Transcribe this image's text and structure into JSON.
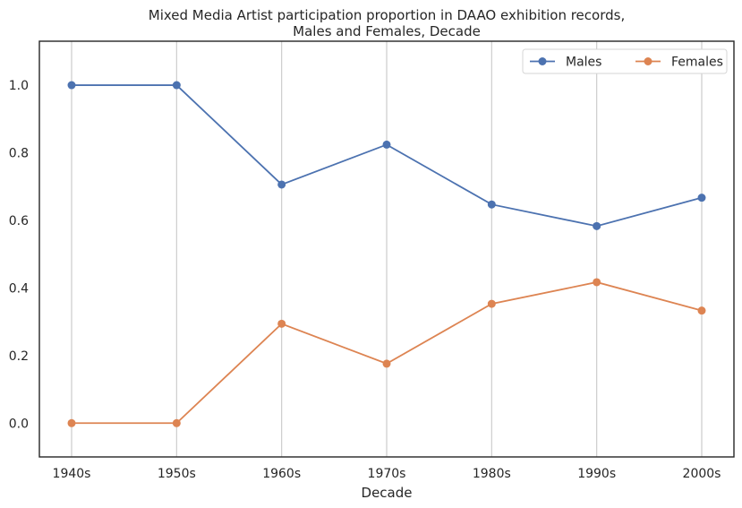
{
  "chart_data": {
    "type": "line",
    "title_lines": [
      "Mixed Media Artist participation proportion in DAAO exhibition records,",
      "Males and Females, Decade"
    ],
    "xlabel": "Decade",
    "ylabel": "",
    "categories": [
      "1940s",
      "1950s",
      "1960s",
      "1970s",
      "1980s",
      "1990s",
      "2000s"
    ],
    "ylim": [
      -0.1,
      1.13
    ],
    "yticks": [
      "0.0",
      "0.2",
      "0.4",
      "0.6",
      "0.8",
      "1.0"
    ],
    "grid": "vertical",
    "legend": "top-right",
    "series": [
      {
        "name": "Males",
        "color": "#4c72b0",
        "values": [
          1.0,
          1.0,
          0.706,
          0.824,
          0.647,
          0.583,
          0.667
        ]
      },
      {
        "name": "Females",
        "color": "#dd8452",
        "values": [
          0.0,
          0.0,
          0.294,
          0.176,
          0.353,
          0.417,
          0.333
        ]
      }
    ]
  }
}
